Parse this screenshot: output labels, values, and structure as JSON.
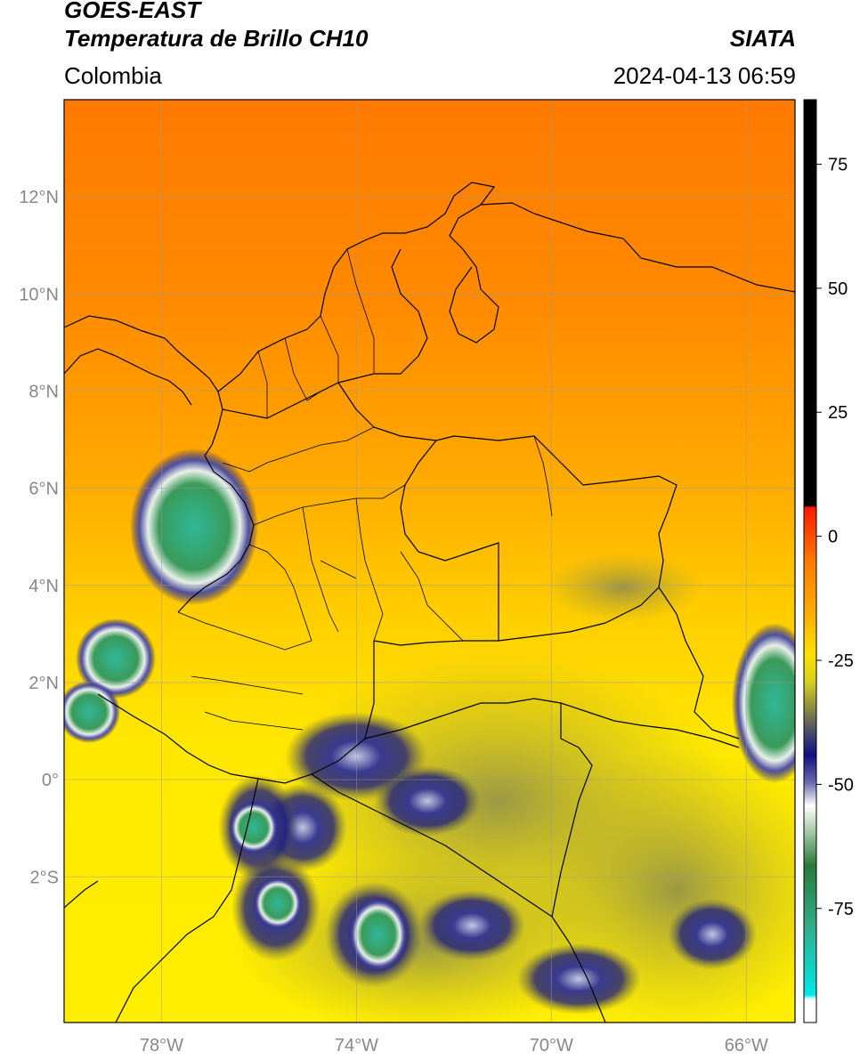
{
  "header": {
    "satellite": "GOES-EAST",
    "product": "Temperatura de Brillo CH10",
    "agency": "SIATA",
    "region": "Colombia",
    "timestamp": "2024-04-13 06:59"
  },
  "map": {
    "lon_range": [
      -80,
      -65
    ],
    "lat_range": [
      -5,
      14
    ],
    "lat_ticks": [
      "12°N",
      "10°N",
      "8°N",
      "6°N",
      "4°N",
      "2°N",
      "0°",
      "2°S"
    ],
    "lon_ticks": [
      "78°W",
      "74°W",
      "70°W",
      "66°W"
    ]
  },
  "colorbar": {
    "ticks": [
      "75",
      "50",
      "25",
      "0",
      "-25",
      "-50",
      "-75"
    ],
    "colors": {
      "warm": "#000000",
      "hot": "#ff2a00",
      "orange": "#ff8c00",
      "yellow": "#ffe600",
      "olive": "#9a9a30",
      "navy": "#1a1a80",
      "white": "#f4f4f4",
      "green": "#3c9a4a",
      "teal": "#20c8b0",
      "cyan": "#00e0e0"
    }
  }
}
